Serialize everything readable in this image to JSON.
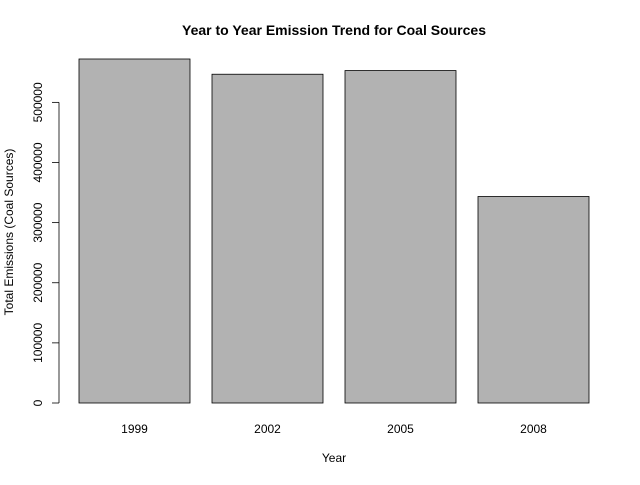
{
  "chart_data": {
    "type": "bar",
    "title": "Year to Year Emission Trend for Coal Sources",
    "xlabel": "Year",
    "ylabel": "Total Emissions (Coal Sources)",
    "categories": [
      "1999",
      "2002",
      "2005",
      "2008"
    ],
    "values": [
      572126,
      546789,
      552881,
      343432
    ],
    "ylim": [
      0,
      572126
    ],
    "yticks": [
      0,
      100000,
      200000,
      300000,
      400000,
      500000
    ],
    "ytick_labels": [
      "0",
      "100000",
      "200000",
      "300000",
      "400000",
      "500000"
    ],
    "bar_color": "#b2b2b2",
    "grid": false,
    "legend": false
  }
}
